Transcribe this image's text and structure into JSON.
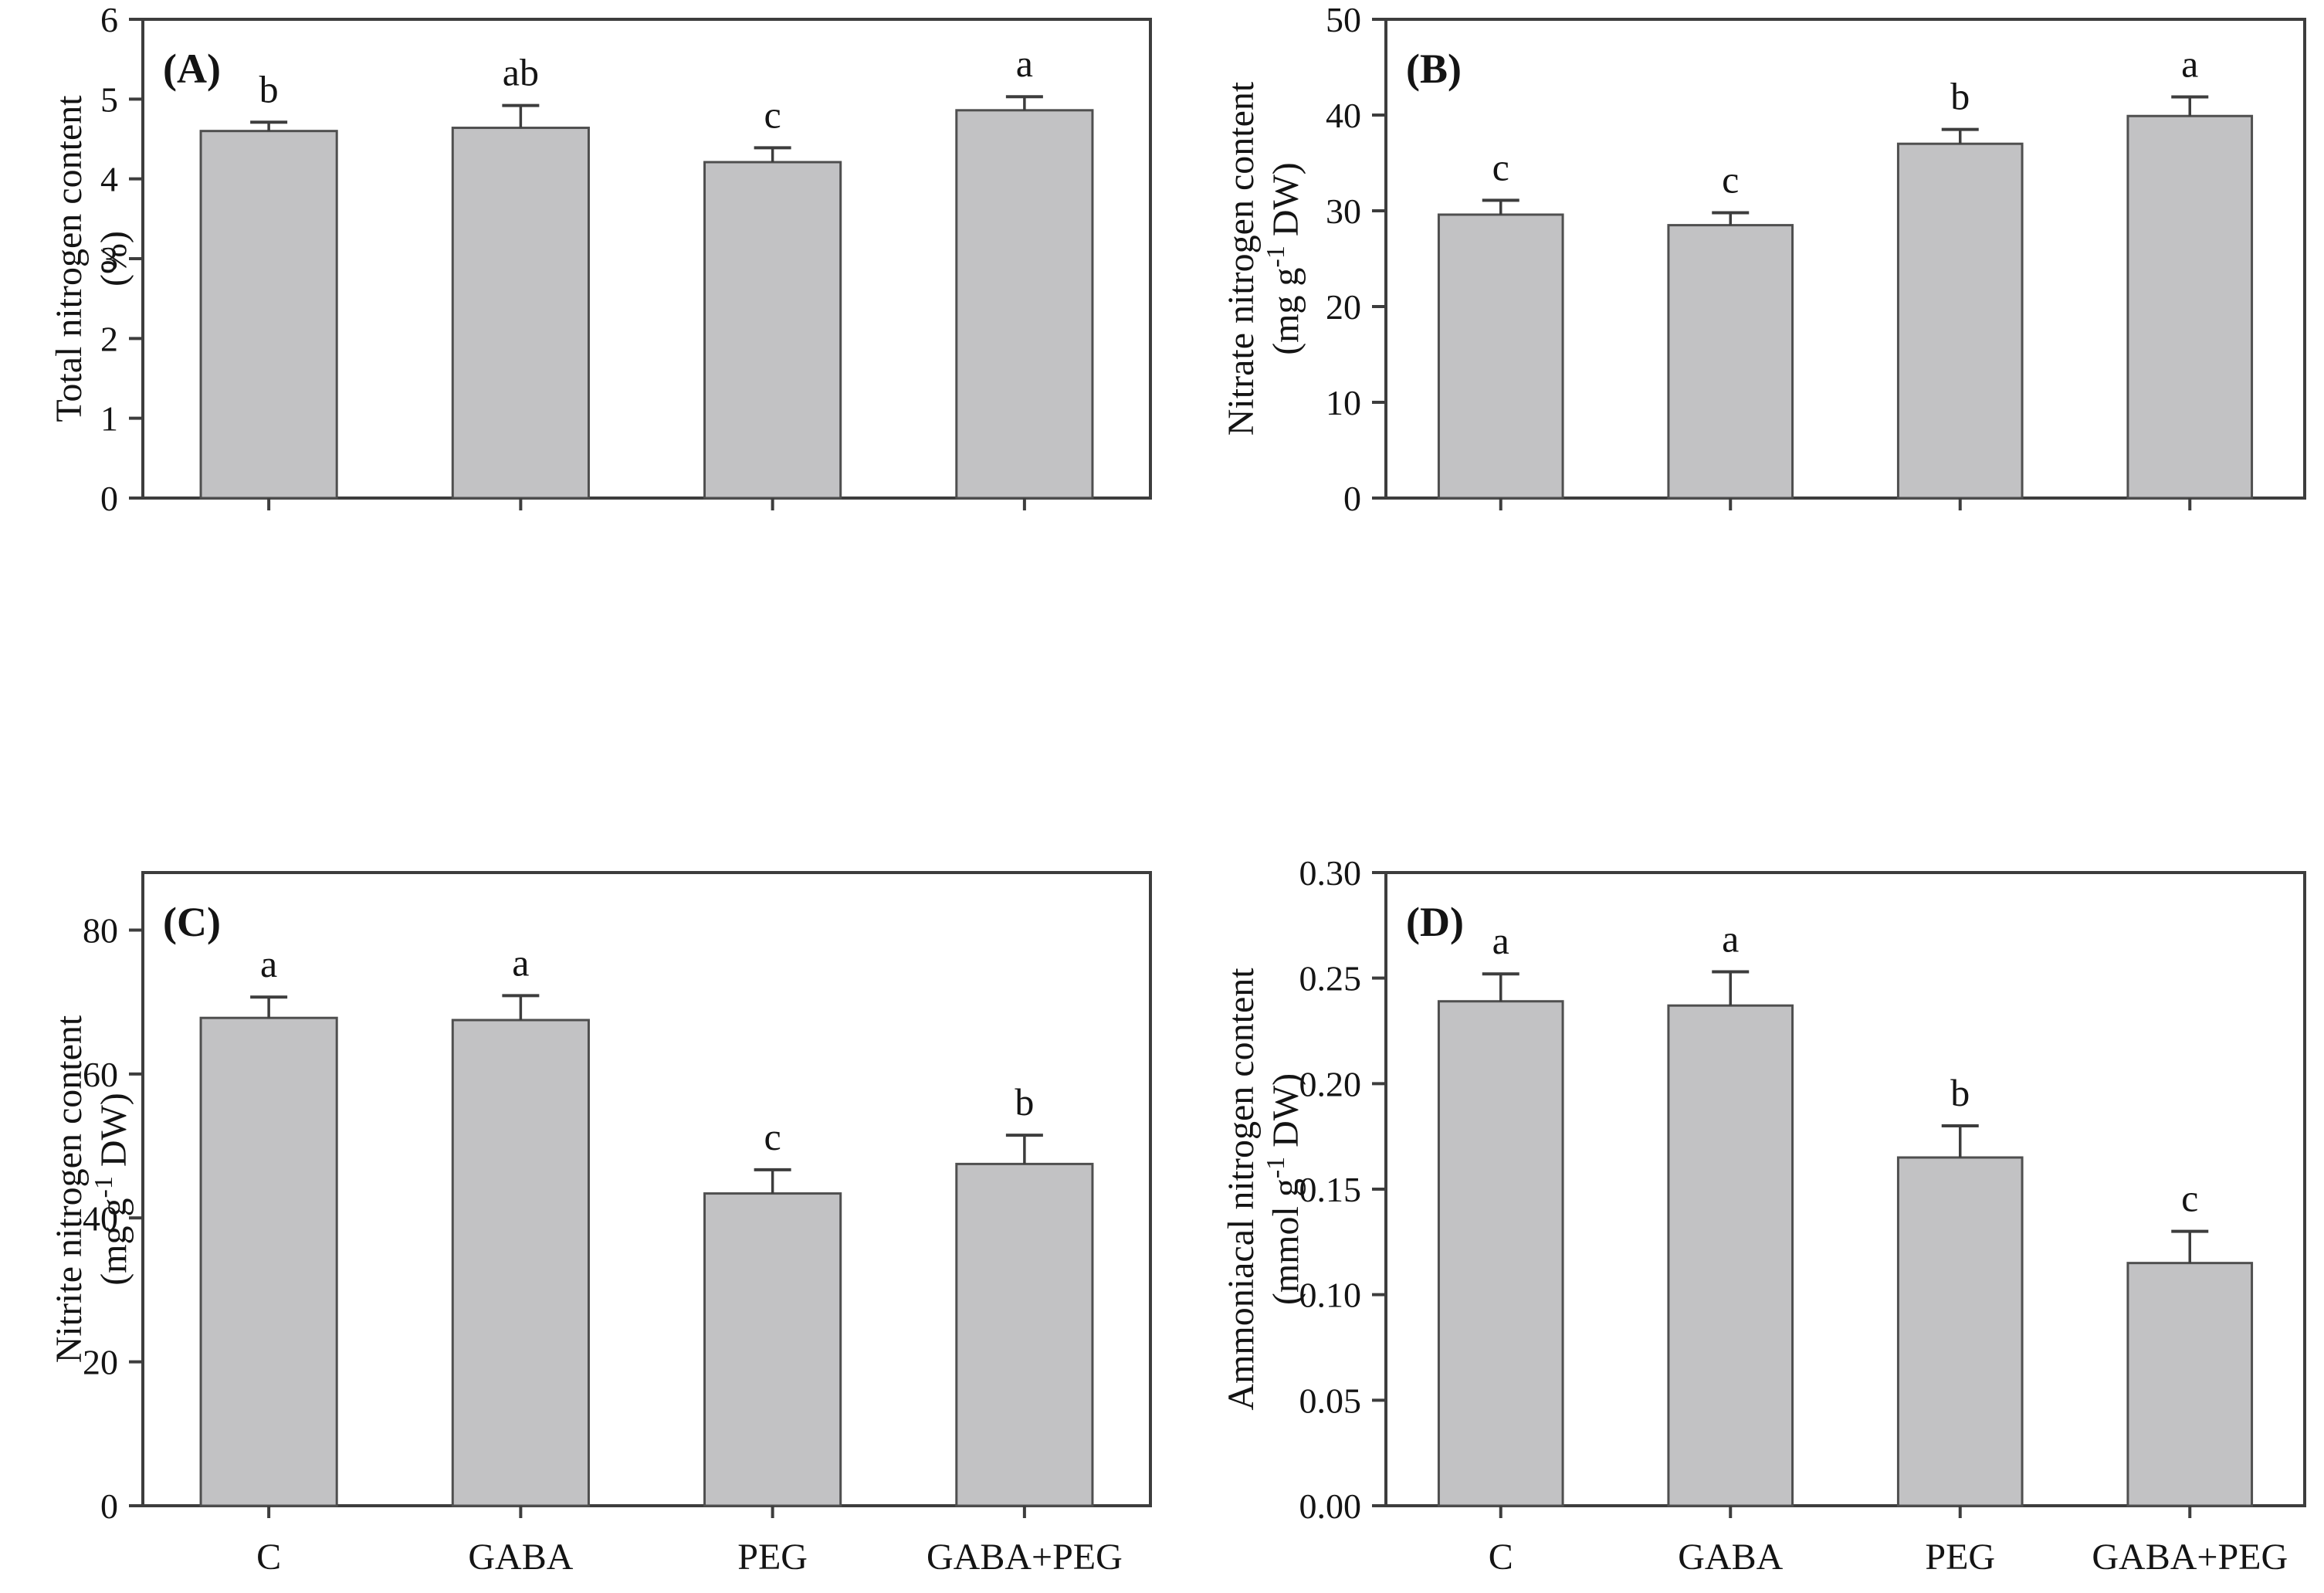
{
  "figure": {
    "background": "#ffffff",
    "bar_fill": "#c2c2c4",
    "bar_border": "#4f4f4f",
    "axis_color": "#3d3d3d",
    "error_color": "#3d3d3d",
    "text_color": "#141414",
    "categories": [
      "C",
      "GABA",
      "PEG",
      "GABA+PEG"
    ]
  },
  "chart_data": [
    {
      "type": "bar",
      "panel_label": "(A)",
      "ylabel": "Total nitrogen content",
      "unit_prefix": "(%)",
      "unit_sup": "",
      "unit_suffix": "",
      "categories": [
        "C",
        "GABA",
        "PEG",
        "GABA+PEG"
      ],
      "values": [
        4.6,
        4.64,
        4.21,
        4.86
      ],
      "errors": [
        0.11,
        0.28,
        0.18,
        0.17
      ],
      "sig_letters": [
        "b",
        "ab",
        "c",
        "a"
      ],
      "ylim": [
        0,
        6
      ],
      "ytick_step": 1,
      "ytick_decimals": 0,
      "grid": false,
      "legend": "none",
      "show_x_labels": false
    },
    {
      "type": "bar",
      "panel_label": "(B)",
      "ylabel": "Nitrate nitrogen content",
      "unit_prefix": "(mg g",
      "unit_sup": "-1",
      "unit_suffix": " DW)",
      "categories": [
        "C",
        "GABA",
        "PEG",
        "GABA+PEG"
      ],
      "values": [
        29.6,
        28.5,
        37.0,
        39.9
      ],
      "errors": [
        1.5,
        1.3,
        1.5,
        2.0
      ],
      "sig_letters": [
        "c",
        "c",
        "b",
        "a"
      ],
      "ylim": [
        0,
        50
      ],
      "ytick_step": 10,
      "ytick_decimals": 0,
      "grid": false,
      "legend": "none",
      "show_x_labels": false
    },
    {
      "type": "bar",
      "panel_label": "(C)",
      "ylabel": "Nitrite nitrogen content",
      "unit_prefix": "(mg g",
      "unit_sup": "-1",
      "unit_suffix": " DW)",
      "categories": [
        "C",
        "GABA",
        "PEG",
        "GABA+PEG"
      ],
      "values": [
        67.8,
        67.5,
        43.4,
        47.5
      ],
      "errors": [
        2.9,
        3.4,
        3.3,
        4.0
      ],
      "sig_letters": [
        "a",
        "a",
        "c",
        "b"
      ],
      "ylim": [
        0,
        88
      ],
      "ytick_step": 20,
      "ytick_decimals": 0,
      "grid": false,
      "legend": "none",
      "show_x_labels": true
    },
    {
      "type": "bar",
      "panel_label": "(D)",
      "ylabel": "Ammoniacal nitrogen content",
      "unit_prefix": "(mmol g",
      "unit_sup": "-1",
      "unit_suffix": " DW)",
      "categories": [
        "C",
        "GABA",
        "PEG",
        "GABA+PEG"
      ],
      "values": [
        0.239,
        0.237,
        0.165,
        0.115
      ],
      "errors": [
        0.013,
        0.016,
        0.015,
        0.015
      ],
      "sig_letters": [
        "a",
        "a",
        "b",
        "c"
      ],
      "ylim": [
        0,
        0.3
      ],
      "ytick_step": 0.05,
      "ytick_decimals": 2,
      "grid": false,
      "legend": "none",
      "show_x_labels": true
    }
  ]
}
